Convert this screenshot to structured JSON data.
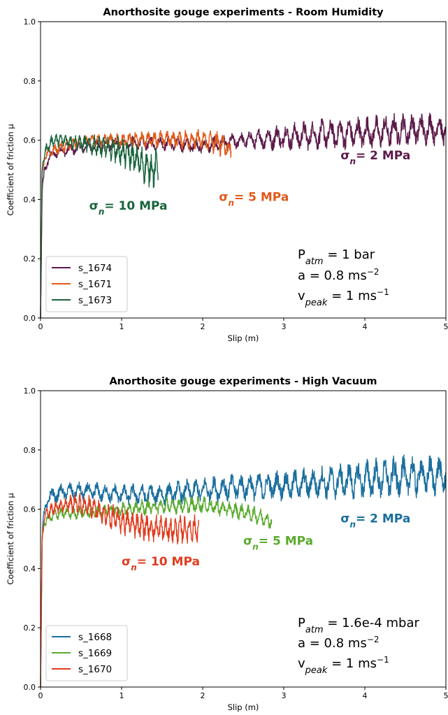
{
  "chart_data": [
    {
      "type": "line",
      "title": "Anorthosite gouge experiments - Room Humidity",
      "xlabel": "Slip (m)",
      "ylabel": "Coefficient of friction μ",
      "xlim": [
        0,
        5
      ],
      "ylim": [
        0.0,
        1.0
      ],
      "xticks": [
        "0",
        "1",
        "2",
        "3",
        "4",
        "5"
      ],
      "yticks": [
        "0.0",
        "0.2",
        "0.4",
        "0.6",
        "0.8",
        "1.0"
      ],
      "grid": false,
      "legend_position": "bottom-left",
      "series": [
        {
          "name": "s_1674",
          "color": "#5c1a4a",
          "points": [
            [
              0,
              0.0
            ],
            [
              0.02,
              0.42
            ],
            [
              0.05,
              0.5
            ],
            [
              0.1,
              0.54
            ],
            [
              0.2,
              0.56
            ],
            [
              0.4,
              0.57
            ],
            [
              0.6,
              0.58
            ],
            [
              0.8,
              0.58
            ],
            [
              1.0,
              0.59
            ],
            [
              1.25,
              0.59
            ],
            [
              1.5,
              0.59
            ],
            [
              2.0,
              0.58
            ],
            [
              2.5,
              0.6
            ],
            [
              3.0,
              0.61
            ],
            [
              3.5,
              0.62
            ],
            [
              4.0,
              0.625
            ],
            [
              4.5,
              0.635
            ],
            [
              5.0,
              0.64
            ]
          ],
          "oscillation": [
            [
              0,
              0.02
            ],
            [
              2.5,
              0.03
            ],
            [
              3.0,
              0.05
            ],
            [
              4.0,
              0.06
            ],
            [
              5.0,
              0.06
            ]
          ]
        },
        {
          "name": "s_1671",
          "color": "#e05a1a",
          "points": [
            [
              0,
              0.0
            ],
            [
              0.02,
              0.48
            ],
            [
              0.05,
              0.54
            ],
            [
              0.1,
              0.56
            ],
            [
              0.3,
              0.58
            ],
            [
              0.6,
              0.6
            ],
            [
              1.0,
              0.6
            ],
            [
              1.5,
              0.605
            ],
            [
              2.0,
              0.6
            ],
            [
              2.2,
              0.59
            ],
            [
              2.3,
              0.58
            ],
            [
              2.35,
              0.55
            ]
          ],
          "oscillation": [
            [
              0,
              0.02
            ],
            [
              1.5,
              0.03
            ],
            [
              2.0,
              0.04
            ],
            [
              2.35,
              0.05
            ]
          ]
        },
        {
          "name": "s_1673",
          "color": "#19643c",
          "points": [
            [
              0,
              0.0
            ],
            [
              0.02,
              0.5
            ],
            [
              0.05,
              0.56
            ],
            [
              0.15,
              0.6
            ],
            [
              0.3,
              0.6
            ],
            [
              0.5,
              0.59
            ],
            [
              0.7,
              0.58
            ],
            [
              0.9,
              0.57
            ],
            [
              1.1,
              0.55
            ],
            [
              1.3,
              0.51
            ],
            [
              1.4,
              0.5
            ],
            [
              1.45,
              0.52
            ]
          ],
          "oscillation": [
            [
              0,
              0.02
            ],
            [
              0.5,
              0.03
            ],
            [
              0.9,
              0.05
            ],
            [
              1.45,
              0.07
            ]
          ]
        }
      ],
      "annotations": [
        {
          "label": "σ",
          "sub": "n",
          "rest": "= 2 MPa",
          "color": "#5c1a4a",
          "x": 3.7,
          "y": 0.535
        },
        {
          "label": "σ",
          "sub": "n",
          "rest": "= 5 MPa",
          "color": "#e05a1a",
          "x": 2.2,
          "y": 0.395
        },
        {
          "label": "σ",
          "sub": "n",
          "rest": "= 10 MPa",
          "color": "#19643c",
          "x": 0.6,
          "y": 0.365
        }
      ],
      "conditions": {
        "p_main": "P",
        "p_sub": "atm",
        "p_rest": " = 1 bar",
        "a_main": "a = 0.8 ms",
        "a_sup": "−2",
        "v_main": "v",
        "v_sub": "peak",
        "v_rest": " = 1 ms",
        "v_sup": "−1"
      }
    },
    {
      "type": "line",
      "title": "Anorthosite gouge experiments - High Vacuum",
      "xlabel": "Slip (m)",
      "ylabel": "Coefficient of friction μ",
      "xlim": [
        0,
        5
      ],
      "ylim": [
        0.0,
        1.0
      ],
      "xticks": [
        "0",
        "1",
        "2",
        "3",
        "4",
        "5"
      ],
      "yticks": [
        "0.0",
        "0.2",
        "0.4",
        "0.6",
        "0.8",
        "1.0"
      ],
      "grid": false,
      "legend_position": "bottom-left",
      "series": [
        {
          "name": "s_1668",
          "color": "#1a6e9e",
          "points": [
            [
              0,
              0.0
            ],
            [
              0.02,
              0.5
            ],
            [
              0.05,
              0.6
            ],
            [
              0.1,
              0.64
            ],
            [
              0.3,
              0.66
            ],
            [
              0.6,
              0.66
            ],
            [
              1.0,
              0.65
            ],
            [
              1.5,
              0.65
            ],
            [
              2.0,
              0.665
            ],
            [
              2.5,
              0.675
            ],
            [
              3.0,
              0.68
            ],
            [
              3.5,
              0.69
            ],
            [
              4.0,
              0.7
            ],
            [
              4.5,
              0.71
            ],
            [
              5.0,
              0.715
            ]
          ],
          "oscillation": [
            [
              0,
              0.03
            ],
            [
              1.5,
              0.04
            ],
            [
              2.5,
              0.05
            ],
            [
              3.5,
              0.06
            ],
            [
              4.5,
              0.08
            ],
            [
              5.0,
              0.07
            ]
          ]
        },
        {
          "name": "s_1669",
          "color": "#5aab2e",
          "points": [
            [
              0,
              0.0
            ],
            [
              0.02,
              0.5
            ],
            [
              0.05,
              0.56
            ],
            [
              0.2,
              0.585
            ],
            [
              0.6,
              0.59
            ],
            [
              1.0,
              0.6
            ],
            [
              1.5,
              0.61
            ],
            [
              2.0,
              0.615
            ],
            [
              2.3,
              0.6
            ],
            [
              2.6,
              0.585
            ],
            [
              2.85,
              0.56
            ]
          ],
          "oscillation": [
            [
              0,
              0.02
            ],
            [
              1.5,
              0.03
            ],
            [
              2.85,
              0.03
            ]
          ]
        },
        {
          "name": "s_1670",
          "color": "#e03c1e",
          "points": [
            [
              0,
              0.0
            ],
            [
              0.02,
              0.5
            ],
            [
              0.05,
              0.58
            ],
            [
              0.2,
              0.61
            ],
            [
              0.4,
              0.62
            ],
            [
              0.6,
              0.61
            ],
            [
              0.8,
              0.58
            ],
            [
              1.0,
              0.56
            ],
            [
              1.3,
              0.54
            ],
            [
              1.6,
              0.53
            ],
            [
              1.95,
              0.535
            ]
          ],
          "oscillation": [
            [
              0,
              0.02
            ],
            [
              0.5,
              0.04
            ],
            [
              1.0,
              0.05
            ],
            [
              1.95,
              0.05
            ]
          ]
        }
      ],
      "annotations": [
        {
          "label": "σ",
          "sub": "n",
          "rest": "= 2 MPa",
          "color": "#1a6e9e",
          "x": 3.7,
          "y": 0.555
        },
        {
          "label": "σ",
          "sub": "n",
          "rest": "= 5 MPa",
          "color": "#5aab2e",
          "x": 2.5,
          "y": 0.48
        },
        {
          "label": "σ",
          "sub": "n",
          "rest": "= 10 MPa",
          "color": "#e03c1e",
          "x": 1.0,
          "y": 0.41
        }
      ],
      "conditions": {
        "p_main": "P",
        "p_sub": "atm",
        "p_rest": " = 1.6e-4 mbar",
        "a_main": "a = 0.8 ms",
        "a_sup": "−2",
        "v_main": "v",
        "v_sub": "peak",
        "v_rest": " = 1 ms",
        "v_sup": "−1"
      }
    }
  ]
}
